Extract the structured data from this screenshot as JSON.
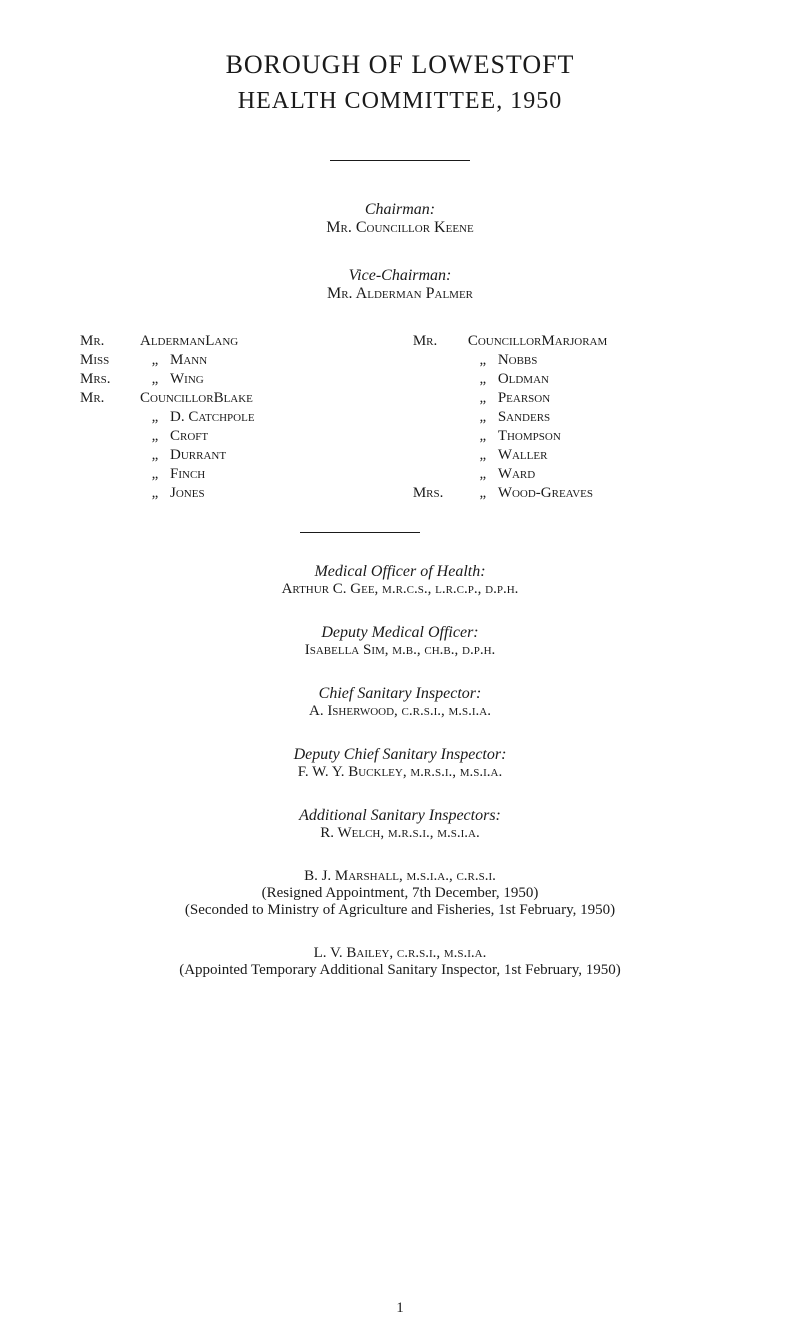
{
  "titles": {
    "main": "BOROUGH OF LOWESTOFT",
    "sub": "HEALTH COMMITTEE, 1950"
  },
  "chairman": {
    "label": "Chairman:",
    "name": "Mr. Councillor Keene"
  },
  "vice_chairman": {
    "label": "Vice-Chairman:",
    "name": "Mr. Alderman Palmer"
  },
  "members_left": [
    {
      "prefix": "Mr.",
      "title": "Alderman",
      "name": "Lang"
    },
    {
      "prefix": "Miss",
      "title": "„",
      "name": "Mann"
    },
    {
      "prefix": "Mrs.",
      "title": "„",
      "name": "Wing"
    },
    {
      "prefix": "Mr.",
      "title": "Councillor",
      "name": "Blake"
    },
    {
      "prefix": "",
      "title": "„",
      "name": "D. Catchpole"
    },
    {
      "prefix": "",
      "title": "„",
      "name": "Croft"
    },
    {
      "prefix": "",
      "title": "„",
      "name": "Durrant"
    },
    {
      "prefix": "",
      "title": "„",
      "name": "Finch"
    },
    {
      "prefix": "",
      "title": "„",
      "name": "Jones"
    }
  ],
  "members_right": [
    {
      "prefix": "Mr.",
      "title": "Councillor",
      "name": "Marjoram"
    },
    {
      "prefix": "",
      "title": "„",
      "name": "Nobbs"
    },
    {
      "prefix": "",
      "title": "„",
      "name": "Oldman"
    },
    {
      "prefix": "",
      "title": "„",
      "name": "Pearson"
    },
    {
      "prefix": "",
      "title": "„",
      "name": "Sanders"
    },
    {
      "prefix": "",
      "title": "„",
      "name": "Thompson"
    },
    {
      "prefix": "",
      "title": "„",
      "name": "Waller"
    },
    {
      "prefix": "",
      "title": "„",
      "name": "Ward"
    },
    {
      "prefix": "Mrs.",
      "title": "„",
      "name": "Wood-Greaves"
    }
  ],
  "officers": {
    "moh": {
      "label": "Medical Officer of Health:",
      "name": "Arthur C. Gee, m.r.c.s., l.r.c.p., d.p.h."
    },
    "dmo": {
      "label": "Deputy Medical Officer:",
      "name": "Isabella Sim, m.b., ch.b., d.p.h."
    },
    "csi": {
      "label": "Chief Sanitary Inspector:",
      "name": "A. Isherwood, c.r.s.i., m.s.i.a."
    },
    "dcsi": {
      "label": "Deputy Chief Sanitary Inspector:",
      "name": "F. W. Y. Buckley, m.r.s.i., m.s.i.a."
    },
    "asi": {
      "label": "Additional Sanitary Inspectors:",
      "name": "R. Welch, m.r.s.i., m.s.i.a."
    },
    "marshall": {
      "name": "B. J. Marshall, m.s.i.a., c.r.s.i.",
      "note1": "(Resigned Appointment, 7th December, 1950)",
      "note2": "(Seconded to Ministry of Agriculture and Fisheries, 1st February, 1950)"
    },
    "bailey": {
      "name": "L. V. Bailey, c.r.s.i., m.s.i.a.",
      "note": "(Appointed Temporary Additional Sanitary Inspector, 1st February, 1950)"
    }
  },
  "page_number": "1"
}
